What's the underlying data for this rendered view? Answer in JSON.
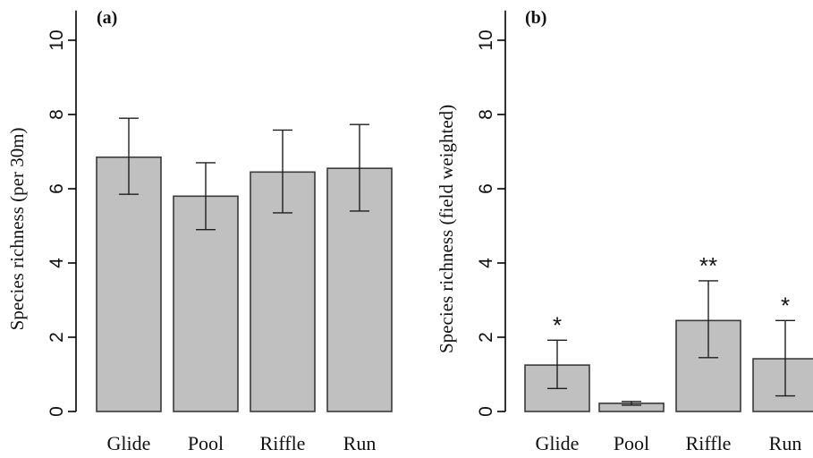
{
  "chart_data": [
    {
      "type": "bar",
      "panel_label": "(a)",
      "ylabel": "Species richness (per 30m)",
      "categories": [
        "Glide",
        "Pool",
        "Riffle",
        "Run"
      ],
      "values": [
        6.85,
        5.8,
        6.45,
        6.55
      ],
      "error_low": [
        5.85,
        4.9,
        5.35,
        5.4
      ],
      "error_high": [
        7.9,
        6.7,
        7.58,
        7.73
      ],
      "significance": [
        "",
        "",
        "",
        ""
      ],
      "ylim": [
        0,
        10.8
      ],
      "yticks": [
        0,
        2,
        4,
        6,
        8,
        10
      ],
      "grid": false
    },
    {
      "type": "bar",
      "panel_label": "(b)",
      "ylabel": "Species richness (field weighted)",
      "categories": [
        "Glide",
        "Pool",
        "Riffle",
        "Run"
      ],
      "values": [
        1.25,
        0.22,
        2.45,
        1.42
      ],
      "error_low": [
        0.62,
        0.17,
        1.45,
        0.42
      ],
      "error_high": [
        1.92,
        0.27,
        3.52,
        2.45
      ],
      "significance": [
        "*",
        "",
        "**",
        "*"
      ],
      "ylim": [
        0,
        10.8
      ],
      "yticks": [
        0,
        2,
        4,
        6,
        8,
        10
      ],
      "grid": false
    }
  ]
}
